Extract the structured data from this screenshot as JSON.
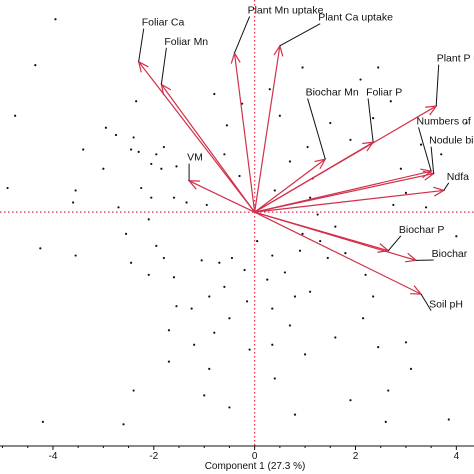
{
  "chart_data": {
    "type": "scatter",
    "subtype": "pca-biplot",
    "xlabel": "Component 1 (27.3 %)",
    "ylabel": "",
    "xlim": [
      -5.05,
      4.35
    ],
    "ylim": [
      -4.85,
      4.4
    ],
    "x_ticks": [
      -4,
      -2,
      0,
      2,
      4
    ],
    "x_tick_labels": [
      "-4",
      "-2",
      "0",
      "2",
      "4"
    ],
    "grid": false,
    "legend": "none",
    "zero_reference_lines": "dotted",
    "colors": {
      "vectors": "#d2304a",
      "reference_lines": "#d2304a",
      "points": "#111111",
      "text": "#111111"
    },
    "loadings": [
      {
        "name": "Foliar Ca",
        "x": -2.3,
        "y": 3.12,
        "label_x": -2.2,
        "label_y": 3.85
      },
      {
        "name": "Foliar Mn",
        "x": -1.85,
        "y": 2.65,
        "label_x": -1.75,
        "label_y": 3.45
      },
      {
        "name": "Plant Mn uptake",
        "x": -0.4,
        "y": 3.3,
        "label_x": -0.1,
        "label_y": 4.1
      },
      {
        "name": "Plant Ca uptake",
        "x": 0.5,
        "y": 3.45,
        "label_x": 1.3,
        "label_y": 3.95
      },
      {
        "name": "Plant P uptake",
        "x": 3.6,
        "y": 2.2,
        "label_x": 3.65,
        "label_y": 3.1
      },
      {
        "name": "Biochar Mn",
        "x": 1.4,
        "y": 1.1,
        "label_x": 1.05,
        "label_y": 2.4
      },
      {
        "name": "Foliar P",
        "x": 2.35,
        "y": 1.45,
        "label_x": 2.25,
        "label_y": 2.4
      },
      {
        "name": "Numbers of nodules",
        "x": 3.5,
        "y": 0.85,
        "label_x": 3.25,
        "label_y": 1.8
      },
      {
        "name": "Nodule biomass",
        "x": 3.55,
        "y": 0.8,
        "label_x": 3.5,
        "label_y": 1.4
      },
      {
        "name": "Ndfa",
        "x": 3.75,
        "y": 0.45,
        "label_x": 3.85,
        "label_y": 0.65
      },
      {
        "name": "VM",
        "x": -1.3,
        "y": 0.65,
        "label_x": -1.3,
        "label_y": 1.05
      },
      {
        "name": "Biochar P",
        "x": 2.65,
        "y": -0.8,
        "label_x": 2.9,
        "label_y": -0.45
      },
      {
        "name": "Biochar",
        "x": 3.2,
        "y": -1.0,
        "label_x": 3.55,
        "label_y": -0.95
      },
      {
        "name": "Soil pH",
        "x": 3.3,
        "y": -1.7,
        "label_x": 3.5,
        "label_y": -2.0
      }
    ],
    "scores": [
      [
        -3.95,
        4.0
      ],
      [
        -4.35,
        3.05
      ],
      [
        -4.75,
        2.0
      ],
      [
        -4.9,
        0.5
      ],
      [
        -3.6,
        0.2
      ],
      [
        -3.55,
        0.45
      ],
      [
        -3.55,
        -0.9
      ],
      [
        -4.25,
        -0.75
      ],
      [
        -2.95,
        1.75
      ],
      [
        -2.75,
        1.6
      ],
      [
        -2.4,
        1.55
      ],
      [
        -2.45,
        1.3
      ],
      [
        -2.3,
        1.25
      ],
      [
        -1.8,
        1.35
      ],
      [
        -1.95,
        1.2
      ],
      [
        -2.05,
        1.0
      ],
      [
        -1.85,
        0.9
      ],
      [
        -1.55,
        0.95
      ],
      [
        -2.05,
        0.3
      ],
      [
        -1.6,
        0.3
      ],
      [
        -1.35,
        0.2
      ],
      [
        -0.95,
        0.15
      ],
      [
        -2.25,
        0.5
      ],
      [
        -2.7,
        0.1
      ],
      [
        -2.1,
        -0.15
      ],
      [
        -2.55,
        -0.45
      ],
      [
        -1.95,
        -0.7
      ],
      [
        -1.8,
        -0.95
      ],
      [
        -2.45,
        -1.05
      ],
      [
        -2.1,
        -1.3
      ],
      [
        -1.6,
        -1.35
      ],
      [
        -1.05,
        -1.0
      ],
      [
        -0.7,
        -1.05
      ],
      [
        -0.45,
        -0.95
      ],
      [
        -0.2,
        -1.2
      ],
      [
        -0.6,
        -1.55
      ],
      [
        -0.9,
        -1.75
      ],
      [
        -1.25,
        -2.0
      ],
      [
        -1.55,
        -1.95
      ],
      [
        -1.7,
        -2.45
      ],
      [
        -1.2,
        -2.75
      ],
      [
        -0.8,
        -2.5
      ],
      [
        -0.5,
        -2.2
      ],
      [
        -0.15,
        -1.85
      ],
      [
        0.35,
        -2.0
      ],
      [
        0.7,
        -2.35
      ],
      [
        1.1,
        -1.65
      ],
      [
        0.6,
        -1.25
      ],
      [
        0.9,
        -0.8
      ],
      [
        1.3,
        -0.6
      ],
      [
        1.45,
        -0.95
      ],
      [
        1.8,
        -0.85
      ],
      [
        2.2,
        -1.3
      ],
      [
        2.35,
        -1.75
      ],
      [
        2.15,
        -2.2
      ],
      [
        1.6,
        -2.6
      ],
      [
        1.0,
        -2.95
      ],
      [
        0.35,
        -2.75
      ],
      [
        -0.1,
        -2.85
      ],
      [
        -0.9,
        -3.25
      ],
      [
        -1.7,
        -3.1
      ],
      [
        -2.4,
        -3.7
      ],
      [
        -2.6,
        -4.4
      ],
      [
        -4.2,
        -4.35
      ],
      [
        -1.0,
        -3.8
      ],
      [
        -0.5,
        -4.05
      ],
      [
        0.4,
        -3.45
      ],
      [
        0.8,
        -4.2
      ],
      [
        1.9,
        -3.9
      ],
      [
        2.6,
        -4.35
      ],
      [
        3.1,
        -3.25
      ],
      [
        3.0,
        -2.7
      ],
      [
        2.45,
        -2.8
      ],
      [
        2.65,
        -3.7
      ],
      [
        3.85,
        -4.3
      ],
      [
        0.35,
        -0.9
      ],
      [
        0.95,
        -0.45
      ],
      [
        1.25,
        -0.05
      ],
      [
        1.6,
        -0.3
      ],
      [
        0.8,
        -1.75
      ],
      [
        0.25,
        -1.4
      ],
      [
        0.05,
        -0.6
      ],
      [
        1.15,
        0.7
      ],
      [
        0.7,
        1.05
      ],
      [
        1.05,
        1.35
      ],
      [
        1.5,
        1.85
      ],
      [
        1.9,
        1.5
      ],
      [
        2.35,
        1.95
      ],
      [
        2.7,
        2.3
      ],
      [
        2.1,
        2.75
      ],
      [
        2.45,
        3.0
      ],
      [
        0.5,
        2.0
      ],
      [
        0.3,
        2.55
      ],
      [
        0.95,
        3.0
      ],
      [
        1.1,
        0.3
      ],
      [
        0.4,
        0.45
      ],
      [
        -0.55,
        1.8
      ],
      [
        -0.25,
        2.25
      ],
      [
        -0.8,
        2.45
      ],
      [
        -0.6,
        1.2
      ],
      [
        -0.3,
        0.75
      ],
      [
        -3.4,
        1.3
      ],
      [
        -3.0,
        0.9
      ],
      [
        -2.35,
        2.3
      ],
      [
        2.9,
        0.9
      ],
      [
        3.3,
        1.4
      ],
      [
        3.0,
        0.4
      ],
      [
        3.7,
        1.2
      ],
      [
        2.75,
        0.15
      ],
      [
        3.4,
        0.1
      ],
      [
        4.0,
        -0.5
      ],
      [
        4.2,
        1.85
      ]
    ]
  }
}
